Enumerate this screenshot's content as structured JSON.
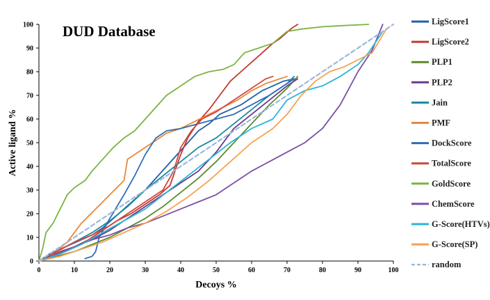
{
  "chart_data": {
    "type": "line",
    "title": "DUD Database",
    "xlabel": "Decoys %",
    "ylabel": "Active ligand %",
    "xlim": [
      0,
      100
    ],
    "ylim": [
      0,
      100
    ],
    "xticks": [
      0,
      10,
      20,
      30,
      40,
      50,
      60,
      70,
      80,
      90,
      100
    ],
    "yticks": [
      0,
      10,
      20,
      30,
      40,
      50,
      60,
      70,
      80,
      90,
      100
    ],
    "grid": false,
    "legend_position": "right",
    "series": [
      {
        "name": "LigScore1",
        "color": "#1f5fa8",
        "dash": false,
        "x": [
          0,
          3,
          6,
          9,
          12,
          15,
          18,
          21,
          24,
          27,
          30,
          33,
          36,
          39,
          42,
          45,
          48,
          51,
          54,
          57,
          60,
          63,
          66,
          69,
          72
        ],
        "y": [
          0,
          3,
          5,
          7,
          9,
          11,
          14,
          18,
          22,
          26,
          30,
          35,
          40,
          45,
          50,
          55,
          58,
          62,
          64,
          66,
          69,
          72,
          74,
          76,
          77
        ]
      },
      {
        "name": "LigScore2",
        "color": "#c03a30",
        "dash": false,
        "x": [
          0,
          3,
          6,
          10,
          14,
          18,
          22,
          26,
          30,
          34,
          37,
          40,
          42,
          45,
          48,
          51,
          54,
          57,
          60,
          63,
          66,
          68,
          71,
          73
        ],
        "y": [
          0,
          2,
          4,
          6,
          9,
          13,
          17,
          20,
          24,
          28,
          32,
          45,
          52,
          59,
          64,
          70,
          76,
          80,
          84,
          88,
          92,
          94,
          98,
          100
        ]
      },
      {
        "name": "PLP1",
        "color": "#5c8a2a",
        "dash": false,
        "x": [
          0,
          5,
          10,
          15,
          20,
          25,
          30,
          35,
          40,
          45,
          50,
          55,
          60,
          65,
          70,
          73
        ],
        "y": [
          0,
          2,
          4,
          7,
          10,
          14,
          18,
          23,
          29,
          35,
          42,
          50,
          58,
          66,
          73,
          78
        ]
      },
      {
        "name": "PLP2",
        "color": "#6a3a8a",
        "dash": false,
        "x": [
          0,
          5,
          10,
          15,
          20,
          25,
          30,
          35,
          40,
          45,
          50,
          55,
          60,
          65,
          70,
          73
        ],
        "y": [
          0,
          3,
          6,
          9,
          13,
          18,
          23,
          28,
          33,
          38,
          46,
          56,
          62,
          68,
          74,
          77
        ]
      },
      {
        "name": "Jain",
        "color": "#1a8aa0",
        "dash": false,
        "x": [
          0,
          5,
          10,
          15,
          20,
          25,
          30,
          35,
          40,
          45,
          50,
          55,
          60,
          65,
          70,
          72
        ],
        "y": [
          0,
          4,
          8,
          12,
          17,
          23,
          30,
          36,
          42,
          48,
          52,
          58,
          64,
          70,
          75,
          78
        ]
      },
      {
        "name": "PMF",
        "color": "#e8873a",
        "dash": false,
        "x": [
          0,
          4,
          8,
          12,
          16,
          20,
          24,
          25,
          28,
          32,
          36,
          40,
          44,
          48,
          52,
          56,
          60,
          64,
          68,
          70
        ],
        "y": [
          0,
          3,
          8,
          16,
          22,
          28,
          34,
          43,
          46,
          50,
          54,
          56,
          59,
          62,
          65,
          68,
          72,
          75,
          77,
          78
        ]
      },
      {
        "name": "DockScore",
        "color": "#2f6db5",
        "dash": false,
        "x": [
          13,
          15,
          16,
          17,
          20,
          24,
          27,
          30,
          33,
          36,
          40,
          45,
          50,
          55,
          60,
          65,
          70,
          72
        ],
        "y": [
          1,
          2,
          4,
          10,
          18,
          28,
          36,
          45,
          52,
          55,
          56,
          58,
          60,
          62,
          66,
          70,
          75,
          77
        ]
      },
      {
        "name": "TotalScore",
        "color": "#d04540",
        "dash": false,
        "x": [
          0,
          5,
          10,
          15,
          20,
          25,
          30,
          35,
          38,
          40,
          43,
          46,
          50,
          55,
          60,
          64,
          66
        ],
        "y": [
          0,
          4,
          8,
          11,
          15,
          20,
          25,
          30,
          38,
          48,
          55,
          60,
          63,
          68,
          73,
          77,
          78
        ]
      },
      {
        "name": "GoldScore",
        "color": "#7cb342",
        "dash": false,
        "x": [
          0,
          1,
          2,
          4,
          6,
          8,
          10,
          13,
          15,
          18,
          21,
          24,
          27,
          30,
          33,
          36,
          40,
          44,
          48,
          52,
          55,
          58,
          62,
          66,
          70,
          74,
          80,
          86,
          93
        ],
        "y": [
          0,
          5,
          12,
          16,
          22,
          28,
          31,
          34,
          38,
          43,
          48,
          52,
          55,
          60,
          65,
          70,
          74,
          78,
          80,
          81,
          83,
          88,
          90,
          92,
          97,
          98,
          99,
          99.5,
          100
        ]
      },
      {
        "name": "ChemScore",
        "color": "#7a4fa3",
        "dash": false,
        "x": [
          0,
          5,
          10,
          15,
          20,
          25,
          30,
          35,
          40,
          45,
          50,
          55,
          60,
          65,
          70,
          75,
          80,
          85,
          90,
          94,
          97
        ],
        "y": [
          0,
          3,
          6,
          9,
          11,
          14,
          16,
          19,
          22,
          25,
          28,
          33,
          38,
          42,
          46,
          50,
          56,
          66,
          80,
          89,
          100
        ]
      },
      {
        "name": "G-Score(HTVs)",
        "color": "#2bb5d8",
        "dash": false,
        "x": [
          0,
          6,
          12,
          18,
          24,
          30,
          36,
          42,
          48,
          54,
          60,
          66,
          70,
          75,
          80,
          85,
          90,
          93,
          97
        ],
        "y": [
          0,
          3,
          7,
          12,
          17,
          22,
          29,
          36,
          43,
          50,
          56,
          60,
          68,
          72,
          74,
          78,
          83,
          88,
          97
        ]
      },
      {
        "name": "G-Score(SP)",
        "color": "#f6a24e",
        "dash": false,
        "x": [
          0,
          6,
          12,
          18,
          24,
          30,
          36,
          42,
          48,
          54,
          60,
          66,
          70,
          74,
          78,
          82,
          86,
          90,
          94,
          98
        ],
        "y": [
          0,
          2,
          5,
          8,
          12,
          16,
          21,
          27,
          34,
          42,
          50,
          56,
          62,
          70,
          76,
          80,
          82,
          85,
          88,
          98
        ]
      },
      {
        "name": "random",
        "color": "#9bb8da",
        "dash": true,
        "x": [
          0,
          100
        ],
        "y": [
          0,
          100
        ]
      }
    ]
  }
}
